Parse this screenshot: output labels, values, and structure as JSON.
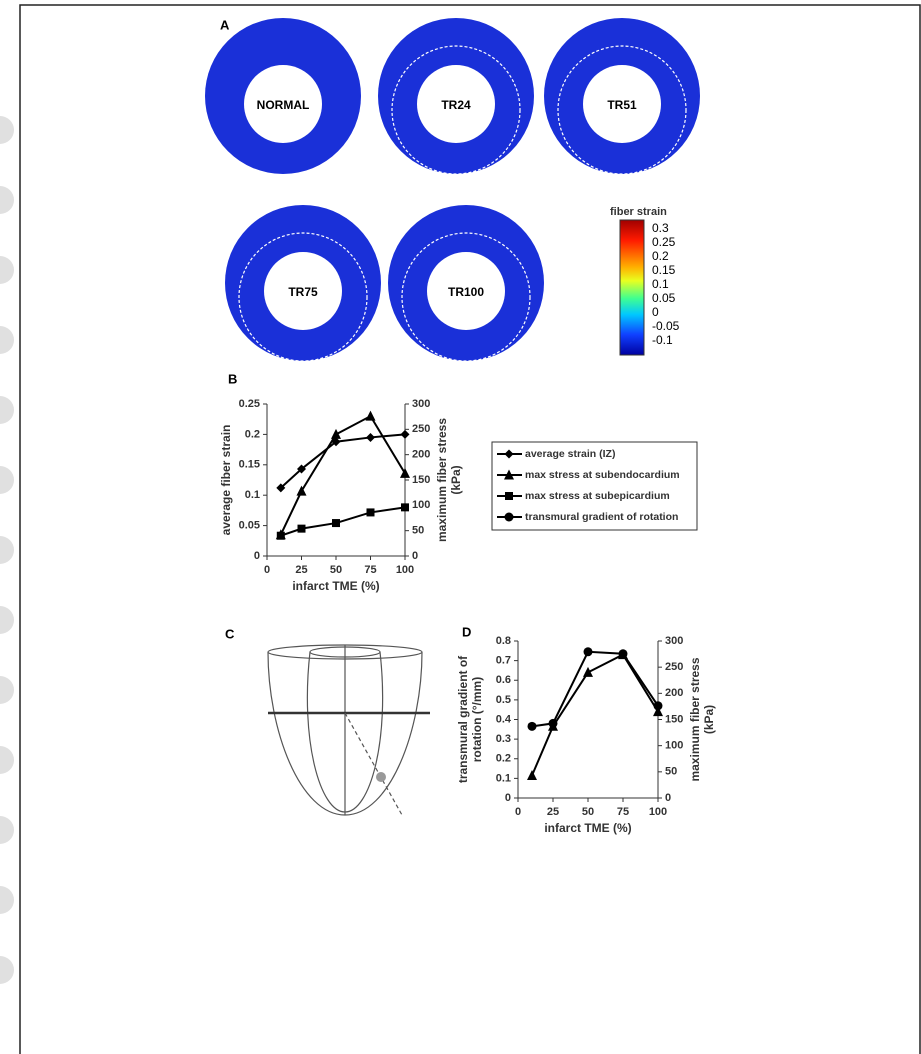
{
  "panel_a": {
    "label": "A",
    "rings": [
      "NORMAL",
      "TR24",
      "TR51",
      "TR75",
      "TR100"
    ],
    "colorbar": {
      "title": "fiber strain",
      "ticks": [
        0.3,
        0.25,
        0.2,
        0.15,
        0.1,
        0.05,
        0,
        -0.05,
        -0.1
      ]
    }
  },
  "panel_c": {
    "label": "C"
  },
  "chart_data": [
    {
      "type": "line",
      "panel_label": "B",
      "x": [
        10,
        25,
        50,
        75,
        100
      ],
      "xlim": [
        0,
        100
      ],
      "xticks": [
        0,
        25,
        50,
        75,
        100
      ],
      "xlabel": "infarct TME (%)",
      "ylim": [
        0,
        0.25
      ],
      "yticks": [
        0,
        0.05,
        0.1,
        0.15,
        0.2,
        0.25
      ],
      "ylabel": [
        "average fiber strain"
      ],
      "y2lim": [
        0,
        300
      ],
      "y2ticks": [
        0,
        50,
        100,
        150,
        200,
        250,
        300
      ],
      "y2label": [
        "maximum fiber stress",
        "(kPa)"
      ],
      "series": [
        {
          "name": "average strain (IZ)",
          "marker": "diamond",
          "color": "#000000",
          "values": [
            0.112,
            0.143,
            0.188,
            0.195,
            0.2
          ]
        },
        {
          "name": "max stress at subendocardium",
          "marker": "triangle",
          "color": "#000000",
          "axis": "y2",
          "values": [
            42,
            128,
            240,
            276,
            163
          ]
        },
        {
          "name": "max stress at subepicardium",
          "marker": "square",
          "color": "#000000",
          "axis": "y2",
          "values": [
            40,
            54,
            65,
            86,
            96
          ]
        },
        {
          "name": "transmural gradient of rotation",
          "marker": "circle",
          "color": "#000000",
          "values": [
            null,
            null,
            null,
            null,
            null
          ]
        }
      ]
    },
    {
      "type": "line",
      "panel_label": "D",
      "x": [
        10,
        25,
        50,
        75,
        100
      ],
      "xlim": [
        0,
        100
      ],
      "xticks": [
        0,
        25,
        50,
        75,
        100
      ],
      "xlabel": "infarct TME (%)",
      "ylim": [
        0,
        0.8
      ],
      "yticks": [
        0,
        0.1,
        0.2,
        0.3,
        0.4,
        0.5,
        0.6,
        0.7,
        0.8
      ],
      "ylabel": [
        "transmural gradient of",
        "rotation (°/mm)"
      ],
      "y2lim": [
        0,
        300
      ],
      "y2ticks": [
        0,
        50,
        100,
        150,
        200,
        250,
        300
      ],
      "y2label": [
        "maximum fiber stress",
        "(kPa)"
      ],
      "series": [
        {
          "marker": "circle",
          "color": "#000000",
          "values": [
            0.365,
            0.38,
            0.745,
            0.735,
            0.47
          ]
        },
        {
          "marker": "triangle",
          "color": "#000000",
          "axis": "y2",
          "values": [
            43,
            137,
            240,
            274,
            165
          ]
        }
      ]
    }
  ]
}
